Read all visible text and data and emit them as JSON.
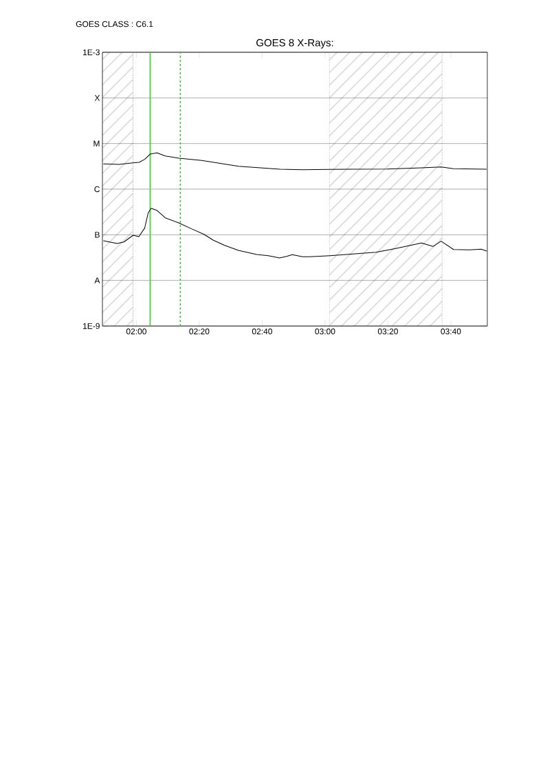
{
  "chart_data": {
    "type": "line",
    "title": "GOES 8 X-Rays:",
    "annotations": [
      "GOES CLASS : C6.1"
    ],
    "log": "y",
    "grid": "y",
    "marker": "none",
    "line_style": "solid",
    "xlim": [
      1.82,
      3.86
    ],
    "xticks": [
      {
        "value": 2.0,
        "label": "02:00"
      },
      {
        "value": 2.3333,
        "label": "02:20"
      },
      {
        "value": 2.6667,
        "label": "02:40"
      },
      {
        "value": 3.0,
        "label": "03:00"
      },
      {
        "value": 3.3333,
        "label": "03:20"
      },
      {
        "value": 3.6667,
        "label": "03:40"
      }
    ],
    "ylim": [
      1e-09,
      0.001
    ],
    "yticks": [
      {
        "value": 1e-09,
        "label": "1E-9"
      },
      {
        "value": 1e-08,
        "label": "A"
      },
      {
        "value": 1e-07,
        "label": "B"
      },
      {
        "value": 1e-06,
        "label": "C"
      },
      {
        "value": 1e-05,
        "label": "M"
      },
      {
        "value": 0.0001,
        "label": "X"
      },
      {
        "value": 0.001,
        "label": "1E-3"
      }
    ],
    "series": [
      {
        "color": "#000000",
        "x": [
          1.825,
          1.909,
          1.982,
          2.015,
          2.044,
          2.073,
          2.109,
          2.153,
          2.226,
          2.346,
          2.542,
          2.761,
          2.881,
          3.026,
          3.328,
          3.51,
          3.616,
          3.681,
          3.856
        ],
        "values": [
          3.57e-06,
          3.49e-06,
          3.78e-06,
          3.87e-06,
          4.5e-06,
          5.87e-06,
          6.22e-06,
          5.35e-06,
          4.77e-06,
          4.25e-06,
          3.18e-06,
          2.74e-06,
          2.67e-06,
          2.71e-06,
          2.77e-06,
          2.93e-06,
          3.07e-06,
          2.8e-06,
          2.74e-06
        ]
      },
      {
        "color": "#000000",
        "x": [
          1.825,
          1.898,
          1.934,
          1.983,
          2.013,
          2.044,
          2.062,
          2.078,
          2.11,
          2.153,
          2.226,
          2.298,
          2.359,
          2.408,
          2.468,
          2.541,
          2.638,
          2.699,
          2.759,
          2.796,
          2.826,
          2.881,
          2.917,
          3.026,
          3.147,
          3.269,
          3.366,
          3.426,
          3.511,
          3.572,
          3.615,
          3.681,
          3.766,
          3.827,
          3.857
        ],
        "values": [
          7.4e-08,
          6.44e-08,
          6.97e-08,
          9.77e-08,
          9.12e-08,
          1.4e-07,
          2.96e-07,
          3.82e-07,
          3.4e-07,
          2.35e-07,
          1.81e-07,
          1.32e-07,
          1.02e-07,
          7.59e-08,
          5.86e-08,
          4.55e-08,
          3.7e-08,
          3.48e-08,
          3.1e-08,
          3.36e-08,
          3.66e-08,
          3.3e-08,
          3.3e-08,
          3.48e-08,
          3.78e-08,
          4.14e-08,
          4.93e-08,
          5.55e-08,
          6.59e-08,
          5.55e-08,
          7.23e-08,
          4.76e-08,
          4.67e-08,
          4.83e-08,
          4.4e-08
        ]
      }
    ],
    "bands": [
      {
        "axis": "x",
        "from": 1.82,
        "to": 1.982,
        "color": "#000000"
      },
      {
        "axis": "x",
        "from": 3.023,
        "to": 3.62,
        "color": "#000000"
      }
    ],
    "ref_lines": [
      {
        "axis": "x",
        "value": 2.073,
        "color": "#33cc33",
        "line_style": "solid"
      },
      {
        "axis": "x",
        "value": 2.233,
        "color": "#33cc33",
        "line_style": "dashed"
      }
    ]
  }
}
